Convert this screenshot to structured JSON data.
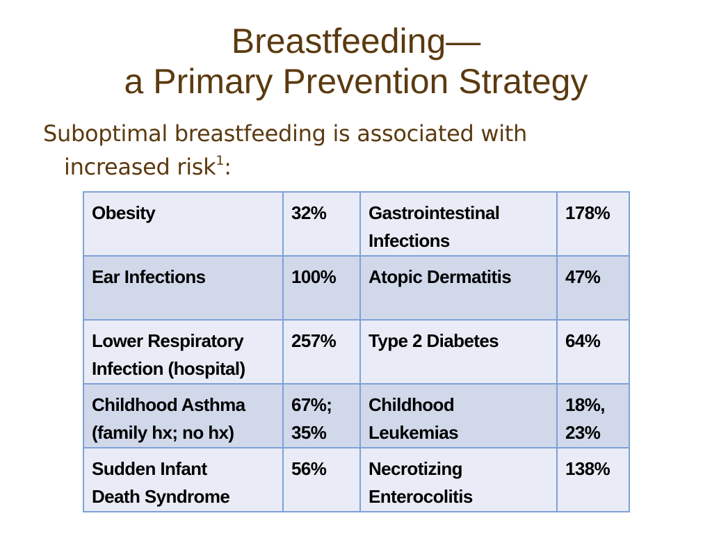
{
  "slide": {
    "title_line1": "Breastfeeding—",
    "title_line2": "a Primary Prevention Strategy",
    "subtitle_line1": "Suboptimal breastfeeding is associated with",
    "subtitle_line2_text": "increased risk",
    "subtitle_superscript": "1",
    "subtitle_suffix": ":"
  },
  "table": {
    "rows": [
      {
        "c1": [
          "Obesity"
        ],
        "c2": [
          "32%"
        ],
        "c3": [
          "Gastrointestinal",
          "Infections"
        ],
        "c4": [
          "178%"
        ]
      },
      {
        "c1": [
          "Ear Infections"
        ],
        "c2": [
          "100%"
        ],
        "c3": [
          "Atopic Dermatitis"
        ],
        "c4": [
          "47%"
        ]
      },
      {
        "c1": [
          "Lower Respiratory",
          "Infection (hospital)"
        ],
        "c2": [
          "257%"
        ],
        "c3": [
          "Type 2 Diabetes"
        ],
        "c4": [
          "64%"
        ]
      },
      {
        "c1": [
          "Childhood Asthma",
          "(family hx; no hx)"
        ],
        "c2": [
          "67%;",
          "35%"
        ],
        "c3": [
          "Childhood",
          "Leukemias"
        ],
        "c4": [
          "18%,",
          "23%"
        ]
      },
      {
        "c1": [
          "Sudden Infant",
          "Death Syndrome"
        ],
        "c2": [
          "56%"
        ],
        "c3": [
          "Necrotizing",
          "Enterocolitis"
        ],
        "c4": [
          "138%"
        ]
      }
    ]
  },
  "colors": {
    "title_text": "#5b3a10",
    "table_border": "#7ea0d8",
    "row_light": "#e9ecf6",
    "row_dark": "#d0d8ea"
  }
}
